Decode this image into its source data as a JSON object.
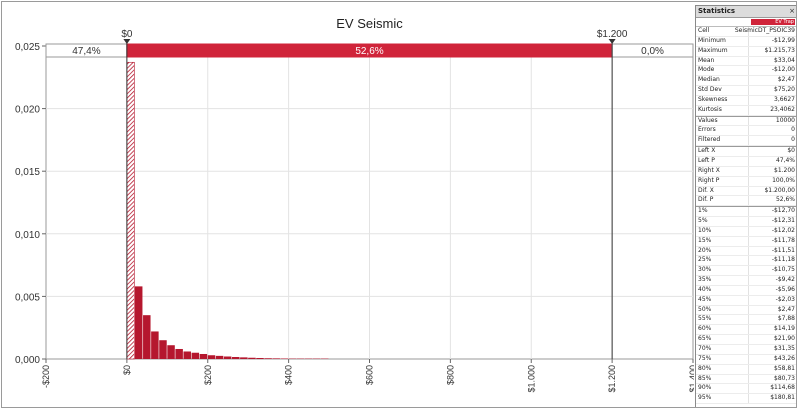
{
  "chart_data": {
    "type": "bar",
    "title": "EV Seismic",
    "xlabel": "",
    "ylabel": "",
    "xlim": [
      -200,
      1400
    ],
    "ylim": [
      0,
      0.025
    ],
    "x_ticks": [
      "-$200",
      "$0",
      "$200",
      "$400",
      "$600",
      "$800",
      "$1.000",
      "$1.200",
      "$1.400"
    ],
    "y_ticks": [
      "0,000",
      "0,005",
      "0,010",
      "0,015",
      "0,020",
      "0,025"
    ],
    "grid": true,
    "bin_width": 20,
    "bins": [
      {
        "x": 0,
        "p": 0.0237
      },
      {
        "x": 20,
        "p": 0.0058
      },
      {
        "x": 40,
        "p": 0.0035
      },
      {
        "x": 60,
        "p": 0.0022
      },
      {
        "x": 80,
        "p": 0.0015
      },
      {
        "x": 100,
        "p": 0.0011
      },
      {
        "x": 120,
        "p": 0.0008
      },
      {
        "x": 140,
        "p": 0.0006
      },
      {
        "x": 160,
        "p": 0.0005
      },
      {
        "x": 180,
        "p": 0.0004
      },
      {
        "x": 200,
        "p": 0.0003
      },
      {
        "x": 220,
        "p": 0.00025
      },
      {
        "x": 240,
        "p": 0.0002
      },
      {
        "x": 260,
        "p": 0.00016
      },
      {
        "x": 280,
        "p": 0.00013
      },
      {
        "x": 300,
        "p": 0.0001
      },
      {
        "x": 320,
        "p": 8e-05
      },
      {
        "x": 340,
        "p": 6e-05
      },
      {
        "x": 360,
        "p": 5e-05
      },
      {
        "x": 380,
        "p": 4e-05
      },
      {
        "x": 400,
        "p": 3e-05
      },
      {
        "x": 420,
        "p": 2e-05
      },
      {
        "x": 440,
        "p": 2e-05
      },
      {
        "x": 460,
        "p": 1e-05
      },
      {
        "x": 480,
        "p": 1e-05
      }
    ],
    "delimiters": {
      "left_x_label": "$0",
      "right_x_label": "$1.200",
      "left_x": 0,
      "right_x": 1200,
      "left_pct": "47,4%",
      "mid_pct": "52,6%",
      "right_pct": "0,0%"
    },
    "colors": {
      "bar": "#b5172e",
      "band": "#d0243a",
      "marker": "#333333"
    }
  },
  "stats": {
    "title": "Statistics",
    "close_glyph": "×",
    "series_label": "EV Trap",
    "rows": [
      {
        "k": "Cell",
        "v": "SeismicDT_PSOIC39"
      },
      {
        "k": "Minimum",
        "v": "-$12,99"
      },
      {
        "k": "Maximum",
        "v": "$1.215,73"
      },
      {
        "k": "Mean",
        "v": "$33,04"
      },
      {
        "k": "Mode",
        "v": "-$12,00"
      },
      {
        "k": "Median",
        "v": "$2,47"
      },
      {
        "k": "Std Dev",
        "v": "$75,20"
      },
      {
        "k": "Skewness",
        "v": "3,6627"
      },
      {
        "k": "Kurtosis",
        "v": "23,4062"
      },
      {
        "k": "Values",
        "v": "10000",
        "sep": true
      },
      {
        "k": "Errors",
        "v": "0"
      },
      {
        "k": "Filtered",
        "v": "0"
      },
      {
        "k": "Left X",
        "v": "$0",
        "sep": true
      },
      {
        "k": "Left P",
        "v": "47,4%"
      },
      {
        "k": "Right X",
        "v": "$1.200"
      },
      {
        "k": "Right P",
        "v": "100,0%"
      },
      {
        "k": "Dif. X",
        "v": "$1.200,00"
      },
      {
        "k": "Dif. P",
        "v": "52,6%"
      },
      {
        "k": "1%",
        "v": "-$12,70",
        "sep": true
      },
      {
        "k": "5%",
        "v": "-$12,31"
      },
      {
        "k": "10%",
        "v": "-$12,02"
      },
      {
        "k": "15%",
        "v": "-$11,78"
      },
      {
        "k": "20%",
        "v": "-$11,51"
      },
      {
        "k": "25%",
        "v": "-$11,18"
      },
      {
        "k": "30%",
        "v": "-$10,75"
      },
      {
        "k": "35%",
        "v": "-$9,42"
      },
      {
        "k": "40%",
        "v": "-$5,96"
      },
      {
        "k": "45%",
        "v": "-$2,03"
      },
      {
        "k": "50%",
        "v": "$2,47"
      },
      {
        "k": "55%",
        "v": "$7,88"
      },
      {
        "k": "60%",
        "v": "$14,19"
      },
      {
        "k": "65%",
        "v": "$21,90"
      },
      {
        "k": "70%",
        "v": "$31,35"
      },
      {
        "k": "75%",
        "v": "$43,26"
      },
      {
        "k": "80%",
        "v": "$58,81"
      },
      {
        "k": "85%",
        "v": "$80,73"
      },
      {
        "k": "90%",
        "v": "$114,68"
      },
      {
        "k": "95%",
        "v": "$180,81"
      }
    ]
  }
}
